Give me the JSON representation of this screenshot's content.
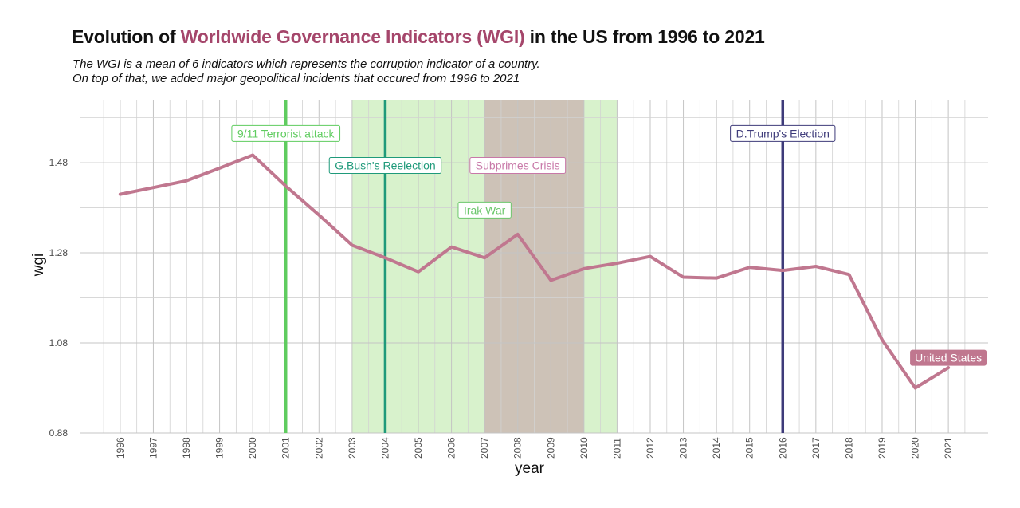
{
  "header": {
    "title_prefix": "Evolution of ",
    "title_highlight": "Worldwide Governance Indicators (WGI)",
    "title_suffix": " in the US from 1996 to 2021",
    "subtitle_line1": "The WGI is a mean of 6 indicators which represents the corruption indicator of a country.",
    "subtitle_line2": "On top of that, we added major geopolitical incidents that occured from 1996 to 2021"
  },
  "chart_data": {
    "type": "line",
    "title": "Evolution of Worldwide Governance Indicators (WGI) in the US from 1996 to 2021",
    "xlabel": "year",
    "ylabel": "wgi",
    "xlim": [
      1994.8,
      2022.2
    ],
    "ylim": [
      0.88,
      1.62
    ],
    "y_ticks": [
      "0.88",
      "1.08",
      "1.28",
      "1.48"
    ],
    "y_tick_values": [
      0.88,
      1.08,
      1.28,
      1.48
    ],
    "x": [
      1996,
      1997,
      1998,
      1999,
      2000,
      2001,
      2002,
      2003,
      2004,
      2005,
      2006,
      2007,
      2008,
      2009,
      2010,
      2011,
      2012,
      2013,
      2014,
      2015,
      2016,
      2017,
      2018,
      2019,
      2020,
      2021
    ],
    "x_tick_labels": [
      "1996",
      "1997",
      "1998",
      "1999",
      "2000",
      "2001",
      "2002",
      "2003",
      "2004",
      "2005",
      "2006",
      "2007",
      "2008",
      "2009",
      "2010",
      "2011",
      "2012",
      "2013",
      "2014",
      "2015",
      "2016",
      "2017",
      "2018",
      "2019",
      "2020",
      "2021"
    ],
    "series": [
      {
        "name": "United States",
        "color": "#c0778f",
        "values": [
          1.41,
          1.425,
          1.44,
          1.468,
          1.497,
          1.428,
          1.364,
          1.297,
          1.269,
          1.238,
          1.293,
          1.269,
          1.321,
          1.219,
          1.245,
          1.257,
          1.272,
          1.226,
          1.224,
          1.248,
          1.241,
          1.25,
          1.232,
          1.087,
          0.98,
          1.025
        ]
      }
    ],
    "grid": true,
    "shaded_periods": [
      {
        "start": 2003,
        "end": 2011,
        "color": "#b2e59a",
        "opacity": 0.5
      },
      {
        "start": 2007,
        "end": 2010,
        "color": "#c9b2b0",
        "opacity": 0.75
      }
    ],
    "events": [
      {
        "year": 2001,
        "label": "9/11 Terrorist attack",
        "color": "#5fcc5f",
        "label_y": 1.545,
        "line": true
      },
      {
        "year": 2004,
        "label": "G.Bush's Reelection",
        "color": "#1f9a7a",
        "label_y": 1.474,
        "line": true
      },
      {
        "year": 2016,
        "label": "D.Trump's Election",
        "color": "#3e3b7a",
        "label_y": 1.545,
        "line": true
      },
      {
        "year": 2008,
        "label": "Subprimes Crisis",
        "color": "#c878a8",
        "label_y": 1.474,
        "line": false
      },
      {
        "year": 2007,
        "label": "Irak War",
        "color": "#6cc76c",
        "label_y": 1.375,
        "line": false
      }
    ],
    "series_label": {
      "text": "United States",
      "year": 2021,
      "value": 1.047,
      "bg": "#c0778f",
      "color": "#ffffff"
    }
  }
}
